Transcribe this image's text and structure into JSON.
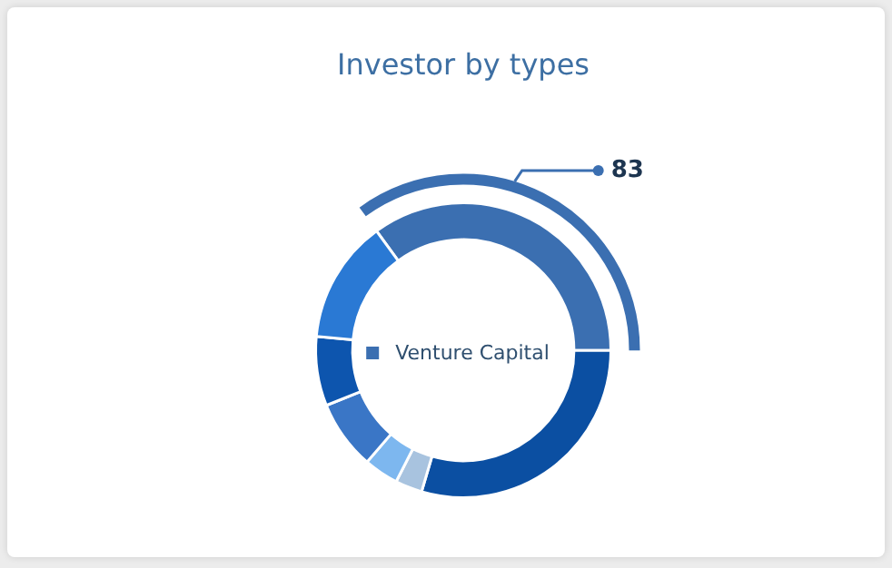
{
  "chart_data": {
    "type": "donut",
    "title": "Investor by types",
    "categories": [
      "Venture Capital",
      null,
      null,
      null,
      null,
      null,
      null
    ],
    "values": [
      83,
      70,
      7,
      9,
      18,
      18,
      32
    ],
    "colors": [
      "#3b6fb1",
      "#0b4fa2",
      "#a8c3df",
      "#7db7ef",
      "#3a76c6",
      "#0d55ae",
      "#2a79d4"
    ],
    "value_labels": [
      "83",
      null,
      null,
      null,
      null,
      null,
      null
    ],
    "legend": "center"
  }
}
